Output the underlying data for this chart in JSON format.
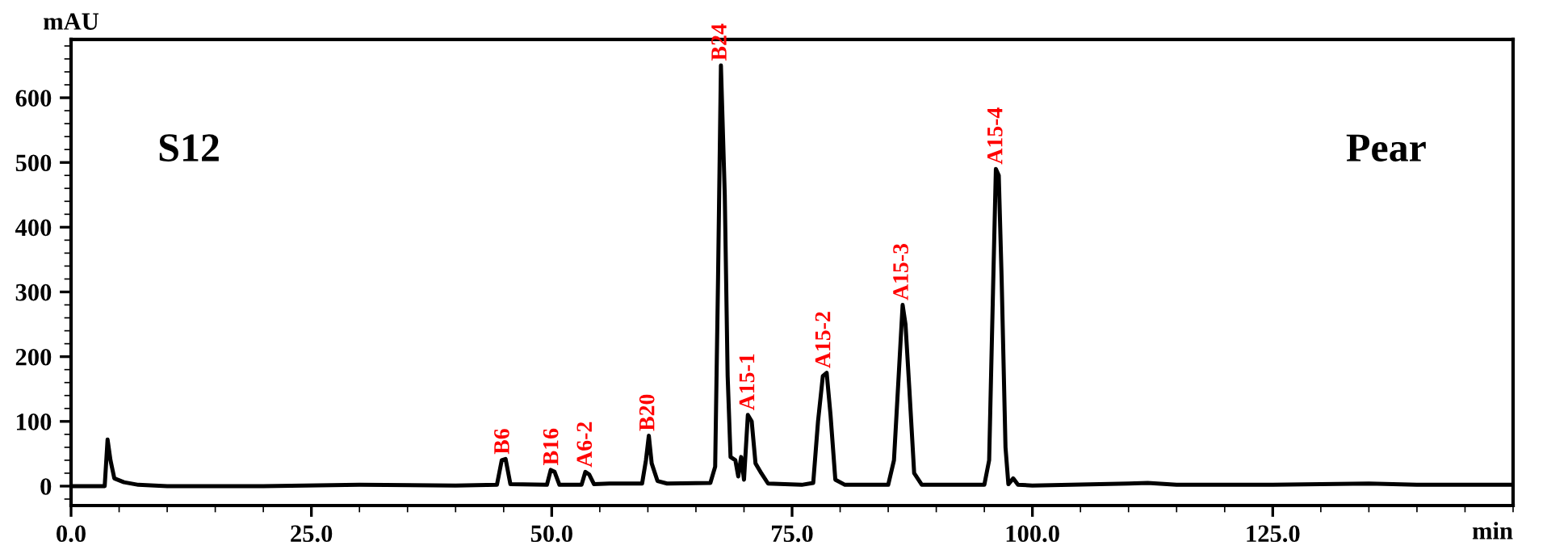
{
  "chart_data": {
    "type": "line",
    "xlabel": "min",
    "ylabel": "mAU",
    "xlim": [
      0,
      150
    ],
    "ylim": [
      -30,
      690
    ],
    "xticks": [
      {
        "value": 0,
        "label": "0.0"
      },
      {
        "value": 25,
        "label": "25.0"
      },
      {
        "value": 50,
        "label": "50.0"
      },
      {
        "value": 75,
        "label": "75.0"
      },
      {
        "value": 100,
        "label": "100.0"
      },
      {
        "value": 125,
        "label": "125.0"
      }
    ],
    "yticks": [
      0,
      100,
      200,
      300,
      400,
      500,
      600
    ],
    "grid": false,
    "marker": "none",
    "line_style": "solid",
    "series": [
      {
        "color": "#000000",
        "x": [
          0,
          3.5,
          3.8,
          4.1,
          4.5,
          5.5,
          7,
          10,
          20,
          30,
          40,
          44.3,
          44.8,
          45.2,
          45.7,
          49.5,
          49.9,
          50.3,
          50.8,
          53.1,
          53.5,
          53.9,
          54.4,
          56,
          59.4,
          59.8,
          60.1,
          60.4,
          61,
          62,
          66.5,
          67,
          67.3,
          67.6,
          68.0,
          68.3,
          68.6,
          69.1,
          69.4,
          69.7,
          70.0,
          70.4,
          70.8,
          71.2,
          71.8,
          72.5,
          76,
          77.2,
          77.7,
          78.2,
          78.6,
          79,
          79.5,
          80.5,
          85,
          85.6,
          86.2,
          86.5,
          86.8,
          87.2,
          87.7,
          88.5,
          95,
          95.5,
          95.9,
          96.2,
          96.5,
          96.8,
          97.2,
          97.5,
          98,
          98.5,
          100,
          110,
          112,
          115,
          125,
          130,
          135,
          140,
          150
        ],
        "values": [
          0,
          0,
          72,
          40,
          12,
          6,
          2,
          0,
          0,
          2,
          1,
          2,
          40,
          42,
          3,
          2,
          25,
          22,
          2,
          2,
          22,
          18,
          3,
          4,
          4,
          40,
          78,
          35,
          8,
          4,
          5,
          30,
          320,
          650,
          450,
          170,
          45,
          40,
          15,
          45,
          10,
          110,
          100,
          35,
          20,
          4,
          2,
          5,
          100,
          170,
          175,
          110,
          10,
          2,
          2,
          40,
          200,
          280,
          250,
          150,
          20,
          2,
          2,
          40,
          300,
          490,
          480,
          320,
          60,
          3,
          12,
          2,
          1,
          4,
          5,
          2,
          2,
          3,
          4,
          2,
          2
        ]
      }
    ],
    "annotations": [
      {
        "text": "S12"
      },
      {
        "text": "Pear"
      },
      {
        "text": "B6",
        "x": 45.0,
        "y": 42
      },
      {
        "text": "B16",
        "x": 50.1,
        "y": 25
      },
      {
        "text": "A6-2",
        "x": 53.6,
        "y": 22
      },
      {
        "text": "B20",
        "x": 60.1,
        "y": 78
      },
      {
        "text": "B24",
        "x": 67.6,
        "y": 650
      },
      {
        "text": "A15-1",
        "x": 70.5,
        "y": 110
      },
      {
        "text": "A15-2",
        "x": 78.4,
        "y": 175
      },
      {
        "text": "A15-3",
        "x": 86.5,
        "y": 280
      },
      {
        "text": "A15-4",
        "x": 96.3,
        "y": 490
      }
    ]
  }
}
